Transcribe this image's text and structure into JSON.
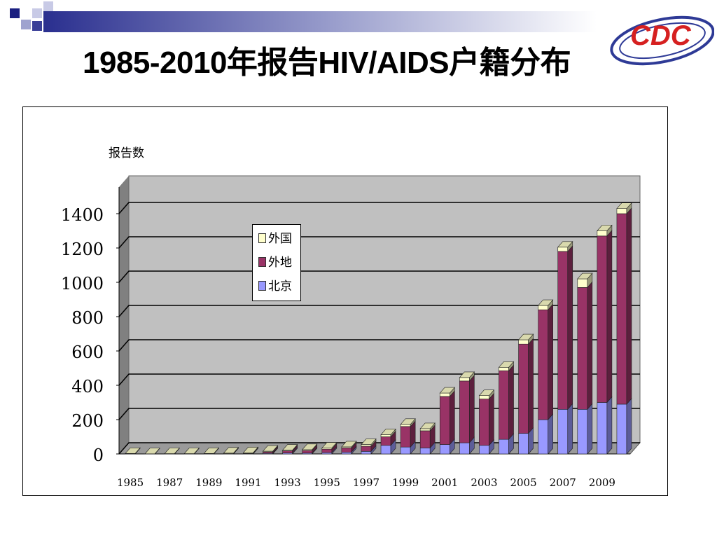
{
  "slide": {
    "title": "1985-2010年报告HIV/AIDS户籍分布",
    "logo_text": "CDC",
    "logo_icon": "cdc-logo-icon"
  },
  "colors": {
    "beijing": "#9999ff",
    "other_provinces": "#993366",
    "foreign": "#ffffcc",
    "plot_background": "#c0c0c0",
    "plot_wall": "#808080",
    "grid": "#000000"
  },
  "chart_data": {
    "type": "bar",
    "stacked": true,
    "three_d": true,
    "ylabel": "报告数",
    "ylim": [
      0,
      1400
    ],
    "y_ticks": [
      "0",
      "200",
      "400",
      "600",
      "800",
      "1000",
      "1200",
      "1400"
    ],
    "grid": true,
    "legend_position": "top-left",
    "categories": [
      "1985",
      "1986",
      "1987",
      "1988",
      "1989",
      "1990",
      "1991",
      "1992",
      "1993",
      "1994",
      "1995",
      "1996",
      "1997",
      "1998",
      "1999",
      "2000",
      "2001",
      "2002",
      "2003",
      "2004",
      "2005",
      "2006",
      "2007",
      "2008",
      "2009",
      "2010"
    ],
    "x_tick_labels": [
      "1985",
      "1987",
      "1989",
      "1991",
      "1993",
      "1995",
      "1997",
      "1999",
      "2001",
      "2003",
      "2005",
      "2007",
      "2009"
    ],
    "series": [
      {
        "name": "北京",
        "color_key": "beijing",
        "values": [
          1,
          0,
          0,
          0,
          1,
          1,
          2,
          4,
          6,
          5,
          8,
          10,
          15,
          50,
          40,
          35,
          55,
          65,
          50,
          85,
          120,
          200,
          260,
          260,
          300,
          290
        ]
      },
      {
        "name": "外地",
        "color_key": "other_provinces",
        "values": [
          0,
          0,
          0,
          0,
          0,
          1,
          1,
          8,
          12,
          15,
          20,
          25,
          30,
          50,
          120,
          100,
          280,
          360,
          270,
          400,
          520,
          640,
          920,
          710,
          970,
          1110
        ]
      },
      {
        "name": "外国",
        "color_key": "foreign",
        "values": [
          2,
          1,
          2,
          2,
          2,
          3,
          4,
          4,
          4,
          5,
          6,
          6,
          10,
          12,
          12,
          12,
          20,
          20,
          20,
          20,
          25,
          25,
          25,
          50,
          30,
          30
        ]
      }
    ]
  }
}
